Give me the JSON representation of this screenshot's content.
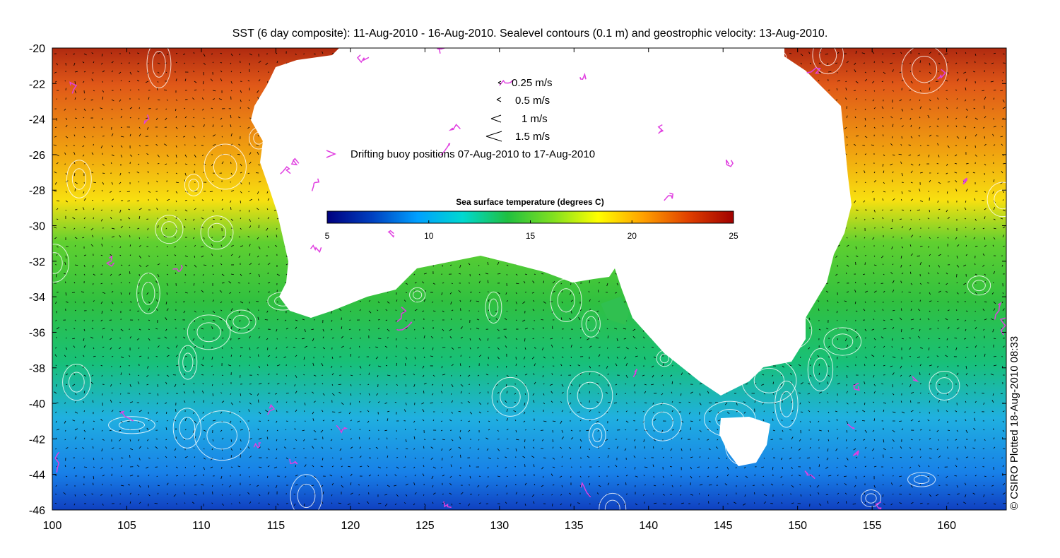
{
  "title": "SST (6 day composite): 11-Aug-2010 - 16-Aug-2010. Sealevel contours (0.1 m) and geostrophic velocity: 13-Aug-2010.",
  "credit": "© CSIRO Plotted 18-Aug-2010 08:33",
  "map": {
    "lon_range": [
      100,
      164
    ],
    "lat_range": [
      -46,
      -20
    ],
    "x_ticks": [
      100,
      105,
      110,
      115,
      120,
      125,
      130,
      135,
      140,
      145,
      150,
      155,
      160
    ],
    "y_ticks": [
      -20,
      -22,
      -24,
      -26,
      -28,
      -30,
      -32,
      -34,
      -36,
      -38,
      -40,
      -42,
      -44,
      -46
    ],
    "land_color": "#ffffff",
    "contour_color": "#ffffff",
    "vector_color": "#000000",
    "buoy_color": "#e040e0"
  },
  "legend": {
    "vectors": [
      {
        "label": "0.25 m/s",
        "speed": 0.25
      },
      {
        "label": "0.5 m/s",
        "speed": 0.5
      },
      {
        "label": "1 m/s",
        "speed": 1
      },
      {
        "label": "1.5 m/s",
        "speed": 1.5
      }
    ],
    "buoy_label": "Drifting buoy positions 07-Aug-2010 to 17-Aug-2010"
  },
  "colorbar": {
    "title": "Sea surface temperature (degrees C)",
    "min": 5,
    "max": 25,
    "ticks": [
      5,
      10,
      15,
      20,
      25
    ],
    "stops": [
      "#00007f",
      "#0040c0",
      "#00a0ff",
      "#00d8d0",
      "#20c040",
      "#80e020",
      "#ffff00",
      "#ffa000",
      "#e04000",
      "#a00000"
    ]
  }
}
